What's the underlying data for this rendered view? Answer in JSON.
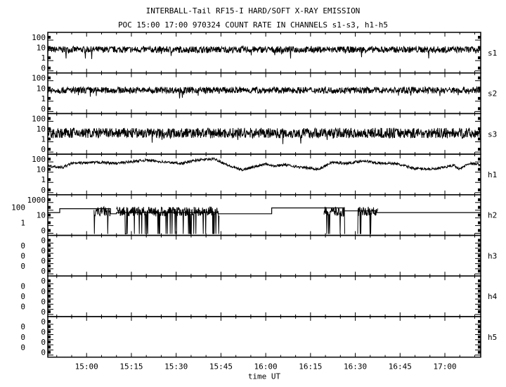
{
  "title": "INTERBALL-Tail RF15-I HARD/SOFT X-RAY EMISSION",
  "subtitle": "POC 15:00 17:00 970324  COUNT RATE IN CHANNELS s1-s3, h1-h5",
  "chart_data": {
    "type": "line",
    "xlabel": "time UT",
    "xlim": [
      "14:47",
      "17:12"
    ],
    "x_ticks": [
      "15:00",
      "15:15",
      "15:30",
      "15:45",
      "16:00",
      "16:15",
      "16:30",
      "16:45",
      "17:00"
    ],
    "y_scale": "log",
    "grid": false,
    "panels": [
      {
        "name": "s1",
        "y_ticks": [
          "100",
          "10",
          "1",
          "0"
        ],
        "ylim": [
          0.12,
          100
        ],
        "typical_value": 6,
        "spread": 0.25
      },
      {
        "name": "s2",
        "y_ticks": [
          "100",
          "10",
          "1",
          "0"
        ],
        "ylim": [
          0.12,
          100
        ],
        "typical_value": 6,
        "spread": 0.25
      },
      {
        "name": "s3",
        "y_ticks": [
          "100",
          "10",
          "1",
          "0"
        ],
        "ylim": [
          0.12,
          100
        ],
        "typical_value": 4,
        "spread": 0.4
      },
      {
        "name": "h1",
        "y_ticks": [
          "100",
          "10",
          "1",
          "0"
        ],
        "ylim": [
          0.12,
          100
        ],
        "values": [
          [
            "14:47",
            15
          ],
          [
            "14:52",
            12
          ],
          [
            "14:55",
            25
          ],
          [
            "15:05",
            30
          ],
          [
            "15:10",
            25
          ],
          [
            "15:20",
            45
          ],
          [
            "15:27",
            30
          ],
          [
            "15:32",
            25
          ],
          [
            "15:37",
            45
          ],
          [
            "15:43",
            55
          ],
          [
            "15:48",
            15
          ],
          [
            "15:52",
            8
          ],
          [
            "15:57",
            15
          ],
          [
            "16:00",
            25
          ],
          [
            "16:03",
            15
          ],
          [
            "16:06",
            20
          ],
          [
            "16:12",
            12
          ],
          [
            "16:18",
            9
          ],
          [
            "16:22",
            30
          ],
          [
            "16:27",
            25
          ],
          [
            "16:33",
            40
          ],
          [
            "16:38",
            25
          ],
          [
            "16:43",
            25
          ],
          [
            "16:50",
            10
          ],
          [
            "16:57",
            9
          ],
          [
            "17:03",
            18
          ],
          [
            "17:05",
            9
          ],
          [
            "17:08",
            25
          ],
          [
            "17:12",
            20
          ]
        ]
      },
      {
        "name": "h2",
        "y_ticks": [
          "1000",
          "100",
          "10",
          "1",
          "0"
        ],
        "ylim": [
          0.12,
          1000
        ],
        "levels": [
          [
            "14:47",
            20
          ],
          [
            "14:51",
            50
          ],
          [
            "15:08",
            15
          ],
          [
            "15:10",
            20
          ],
          [
            "15:44",
            15
          ],
          [
            "16:02",
            60
          ],
          [
            "16:26",
            30
          ],
          [
            "16:37",
            20
          ],
          [
            "17:12",
            20
          ]
        ],
        "bursts": [
          [
            "15:02.5",
            "15:08"
          ],
          [
            "15:10",
            "15:44.4"
          ],
          [
            "16:19.5",
            "16:26.5"
          ],
          [
            "16:30.8",
            "16:37.6"
          ]
        ],
        "burst_range": [
          8,
          80
        ]
      },
      {
        "name": "h3",
        "y_ticks": [
          "0",
          "0",
          "0",
          "0",
          "0",
          "0",
          "0"
        ],
        "values": []
      },
      {
        "name": "h4",
        "y_ticks": [
          "0",
          "0",
          "0",
          "0",
          "0",
          "0",
          "0"
        ],
        "values": []
      },
      {
        "name": "h5",
        "y_ticks": [
          "0",
          "0",
          "0",
          "0",
          "0",
          "0",
          "0"
        ],
        "values": []
      }
    ]
  }
}
